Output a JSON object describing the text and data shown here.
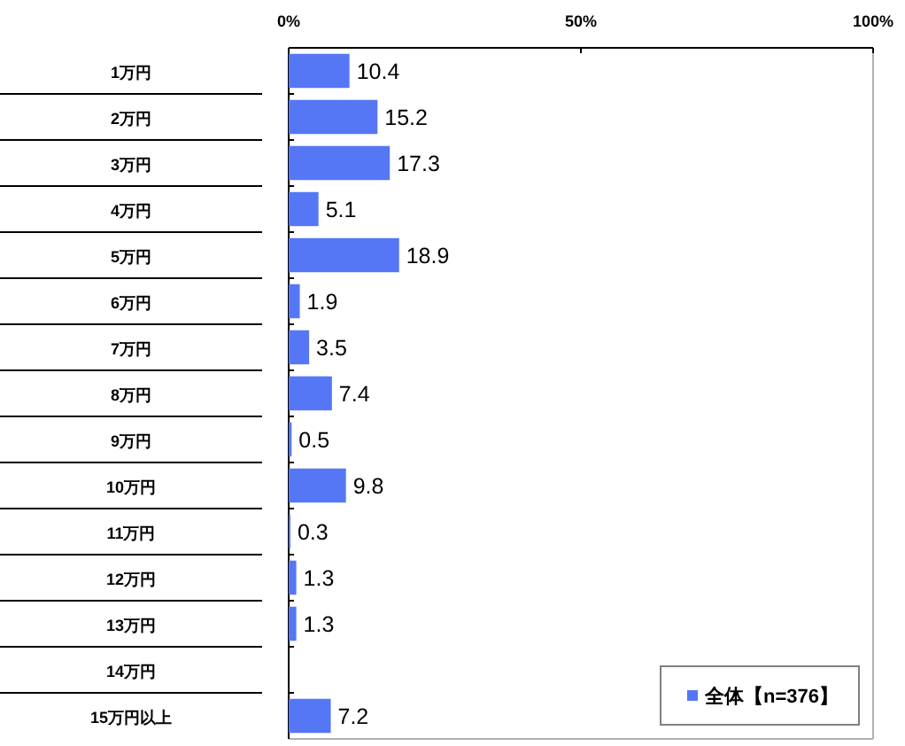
{
  "chart_data": {
    "type": "bar",
    "orientation": "horizontal",
    "categories": [
      "1万円",
      "2万円",
      "3万円",
      "4万円",
      "5万円",
      "6万円",
      "7万円",
      "8万円",
      "9万円",
      "10万円",
      "11万円",
      "12万円",
      "13万円",
      "14万円",
      "15万円以上"
    ],
    "series": [
      {
        "name": "全体【n=376】",
        "color": "#5577f5",
        "values": [
          10.4,
          15.2,
          17.3,
          5.1,
          18.9,
          1.9,
          3.5,
          7.4,
          0.5,
          9.8,
          0.3,
          1.3,
          1.3,
          null,
          7.2
        ]
      }
    ],
    "xlim": [
      0,
      100
    ],
    "xticks": [
      {
        "value": 0,
        "label": "0%"
      },
      {
        "value": 50,
        "label": "50%"
      },
      {
        "value": 100,
        "label": "100%"
      }
    ],
    "data_labels": true,
    "legend": "bottom right"
  }
}
